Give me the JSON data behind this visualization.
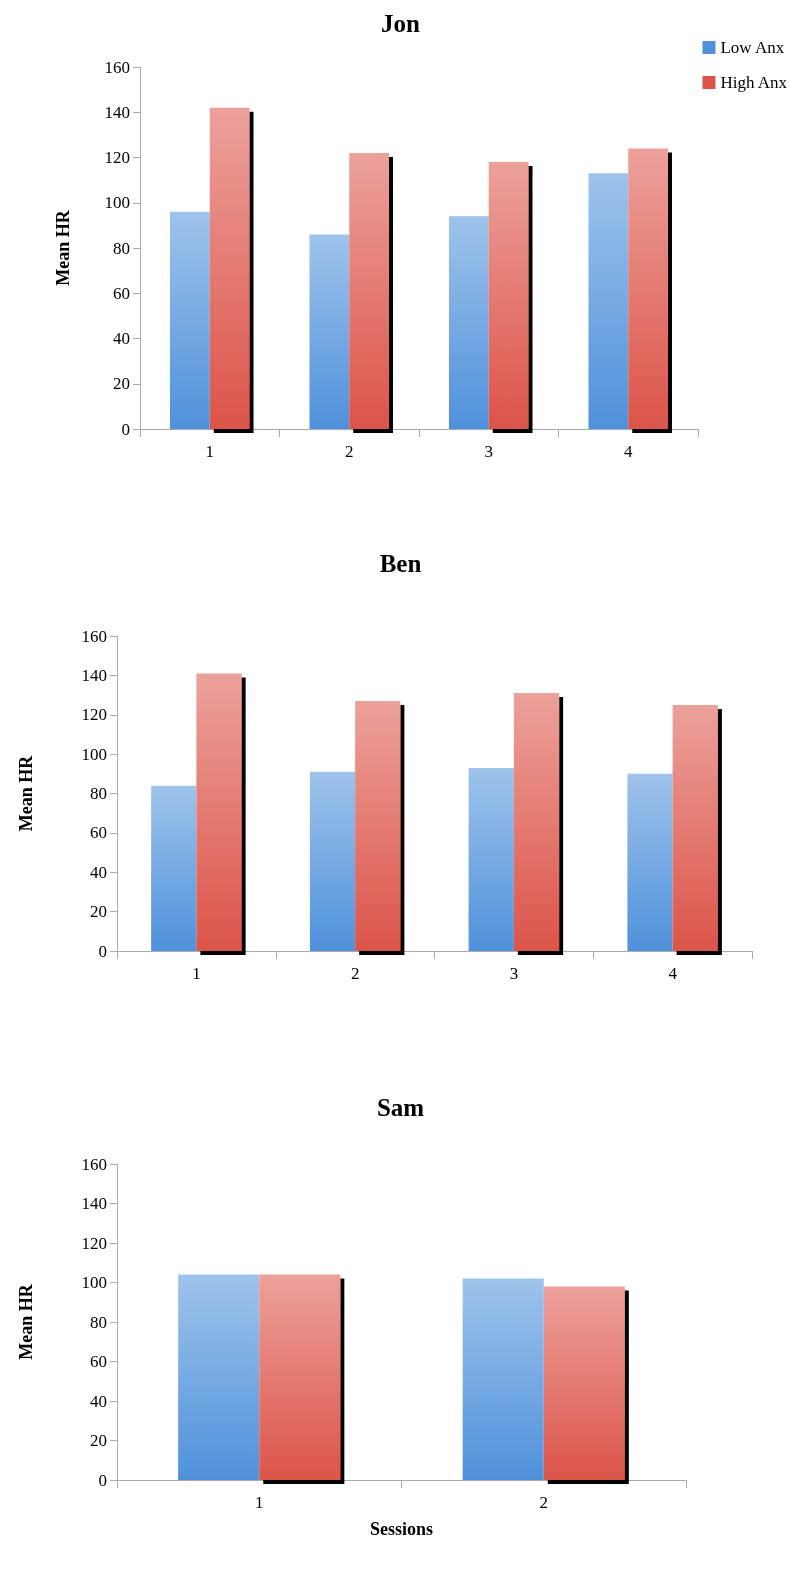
{
  "chart_data": [
    {
      "type": "bar",
      "title": "Jon",
      "ylabel": "Mean HR",
      "categories": [
        "1",
        "2",
        "3",
        "4"
      ],
      "series": [
        {
          "name": "Low Anx",
          "color": "#4f91db",
          "values": [
            96,
            86,
            94,
            113
          ]
        },
        {
          "name": "High Anx",
          "color": "#dc5449",
          "values": [
            142,
            122,
            118,
            124
          ]
        }
      ],
      "ylim": [
        0,
        160
      ],
      "yticks": [
        0,
        20,
        40,
        60,
        80,
        100,
        120,
        140,
        160
      ],
      "grid": false,
      "legend": "top right"
    },
    {
      "type": "bar",
      "title": "Ben",
      "ylabel": "Mean HR",
      "categories": [
        "1",
        "2",
        "3",
        "4"
      ],
      "series": [
        {
          "color": "#4f91db",
          "values": [
            84,
            91,
            93,
            90
          ]
        },
        {
          "color": "#dc5449",
          "values": [
            141,
            127,
            131,
            125
          ]
        }
      ],
      "ylim": [
        0,
        160
      ],
      "yticks": [
        0,
        20,
        40,
        60,
        80,
        100,
        120,
        140,
        160
      ],
      "grid": false
    },
    {
      "type": "bar",
      "title": "Sam",
      "xlabel": "Sessions",
      "ylabel": "Mean HR",
      "categories": [
        "1",
        "2"
      ],
      "series": [
        {
          "color": "#4f91db",
          "values": [
            104,
            102
          ]
        },
        {
          "color": "#dc5449",
          "values": [
            104,
            98
          ]
        }
      ],
      "ylim": [
        0,
        160
      ],
      "yticks": [
        0,
        20,
        40,
        60,
        80,
        100,
        120,
        140,
        160
      ],
      "grid": false
    }
  ]
}
